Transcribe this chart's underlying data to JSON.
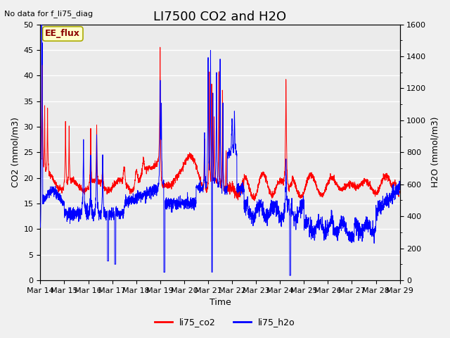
{
  "title": "LI7500 CO2 and H2O",
  "top_left_text": "No data for f_li75_diag",
  "xlabel": "Time",
  "ylabel_left": "CO2 (mmol/m3)",
  "ylabel_right": "H2O (mmol/m3)",
  "ylim_left": [
    0,
    50
  ],
  "ylim_right": [
    0,
    1600
  ],
  "xtick_labels": [
    "Mar 14",
    "Mar 15",
    "Mar 16",
    "Mar 17",
    "Mar 18",
    "Mar 19",
    "Mar 20",
    "Mar 21",
    "Mar 22",
    "Mar 23",
    "Mar 24",
    "Mar 25",
    "Mar 26",
    "Mar 27",
    "Mar 28",
    "Mar 29"
  ],
  "legend_labels": [
    "li75_co2",
    "li75_h2o"
  ],
  "legend_colors": [
    "red",
    "blue"
  ],
  "co2_color": "red",
  "h2o_color": "blue",
  "plot_bg_color": "#ebebeb",
  "fig_bg_color": "#f0f0f0",
  "box_label": "EE_flux",
  "box_facecolor": "#ffffcc",
  "box_edgecolor": "#aaaa00",
  "title_fontsize": 13,
  "axis_label_fontsize": 9,
  "tick_fontsize": 8,
  "grid_color": "white",
  "grid_lw": 1.0
}
